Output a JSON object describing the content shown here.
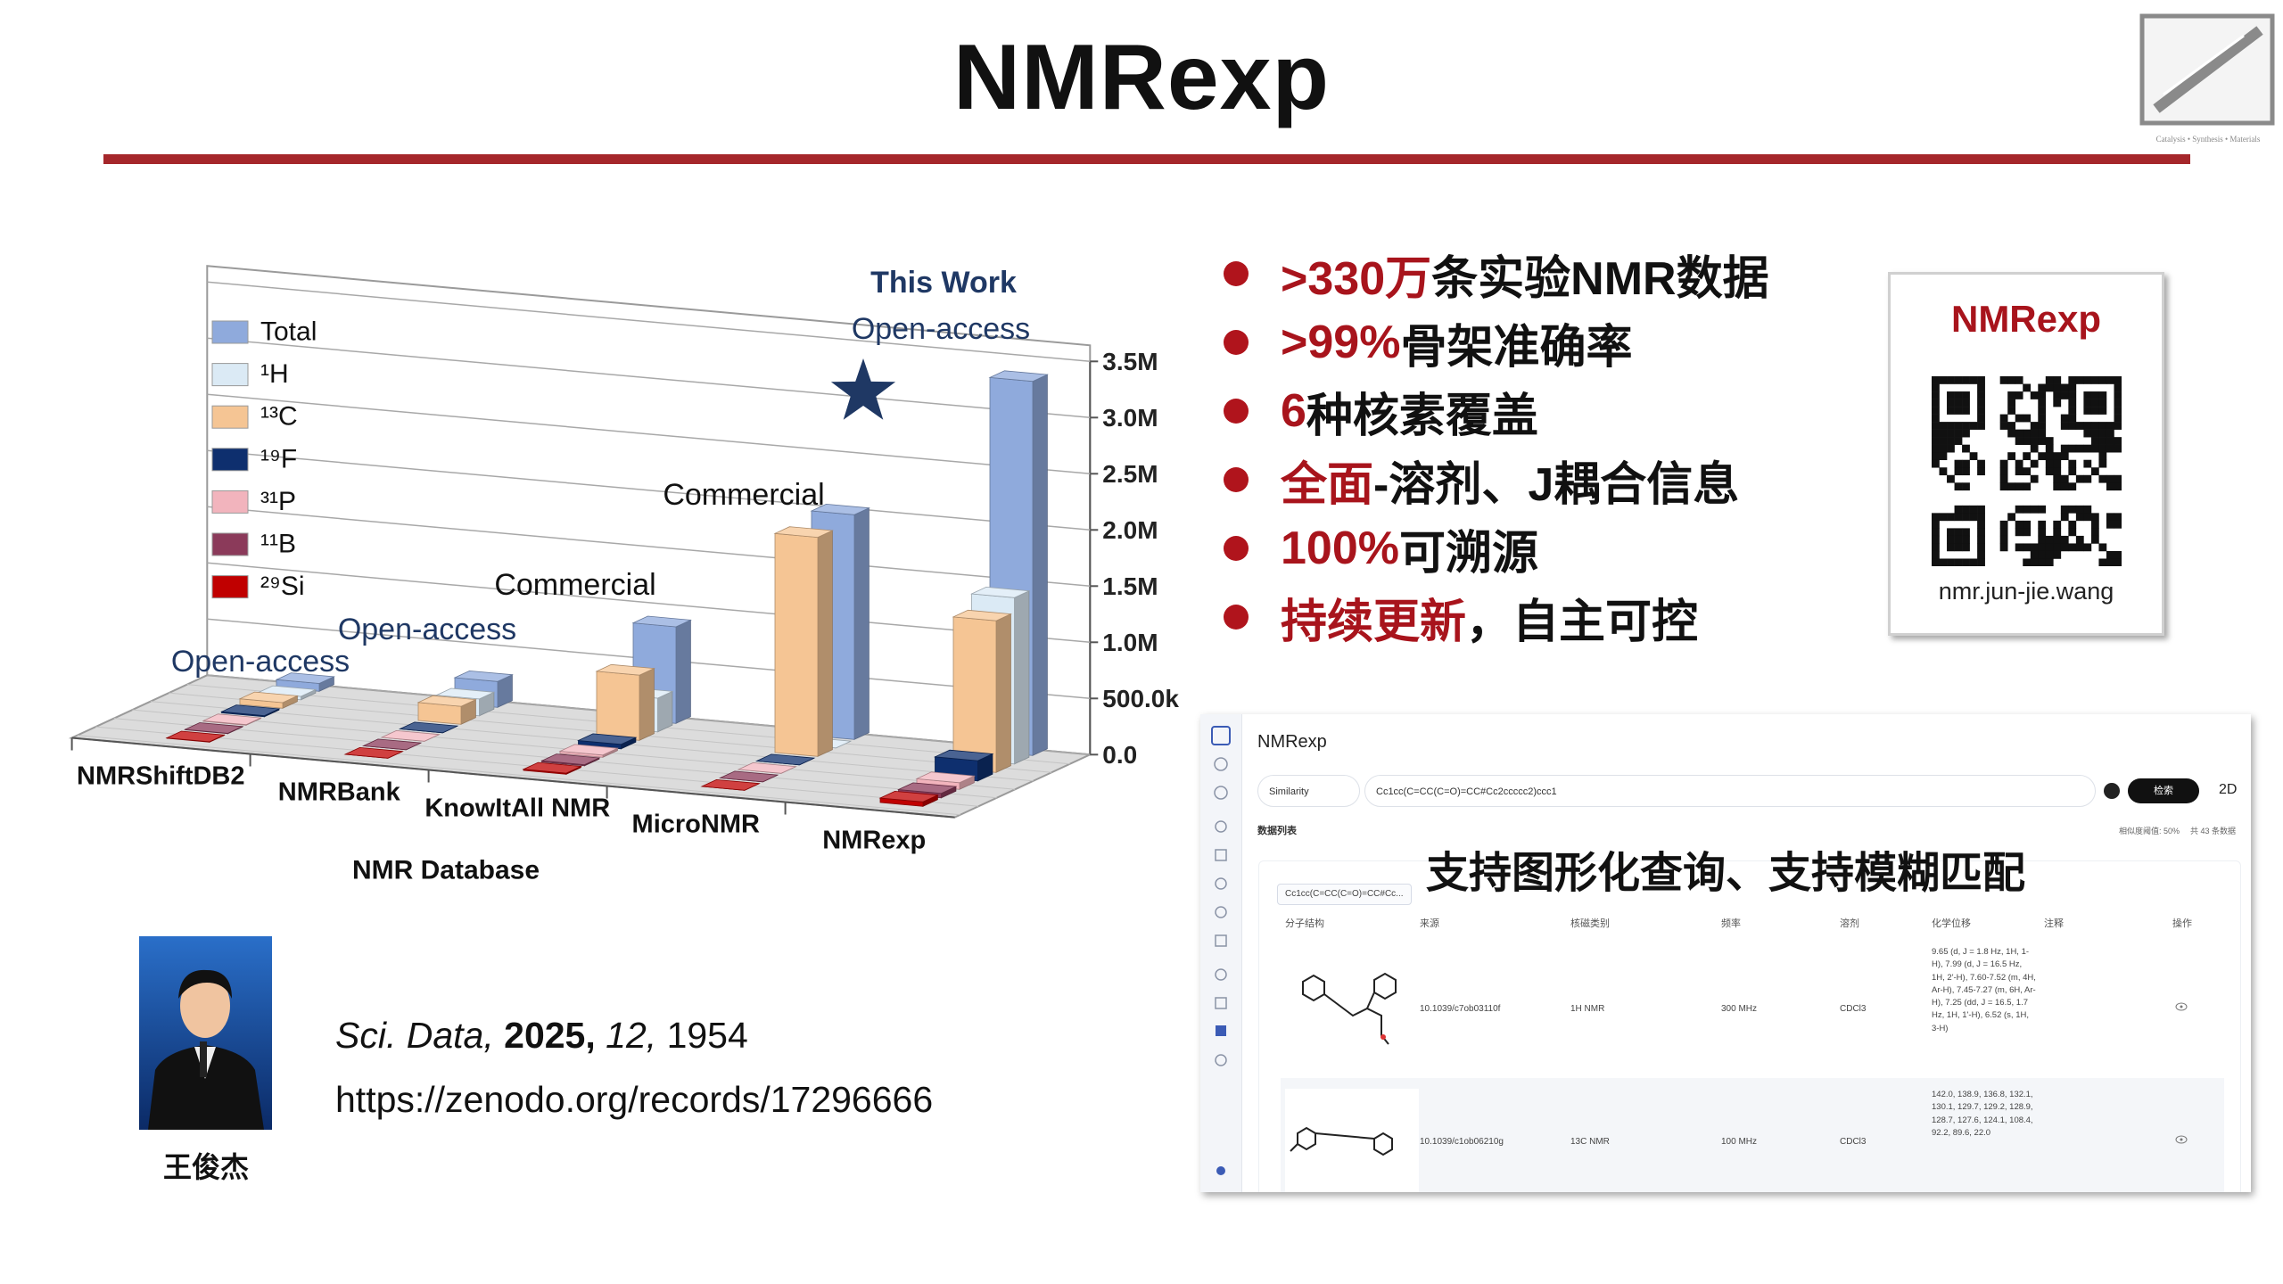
{
  "header": {
    "title": "NMRexp",
    "logo_caption": "Catalysis • Synthesis • Materials"
  },
  "chart_data": {
    "type": "bar3d",
    "xlabel": "NMR Database",
    "categories": [
      "NMRShiftDB2",
      "NMRBank",
      "KnowItAll NMR",
      "MicroNMR",
      "NMRexp"
    ],
    "series": [
      {
        "name": "Total",
        "color": "#8faadc",
        "values": [
          70000,
          230000,
          860000,
          2000000,
          3330000
        ]
      },
      {
        "name": "¹H",
        "color": "#dbeaf5",
        "values": [
          30000,
          150000,
          300000,
          0,
          1480000
        ]
      },
      {
        "name": "¹³C",
        "color": "#f5c594",
        "values": [
          50000,
          160000,
          580000,
          1950000,
          1350000
        ]
      },
      {
        "name": "¹⁹F",
        "color": "#0e2f6e",
        "values": [
          10000,
          0,
          40000,
          0,
          180000
        ]
      },
      {
        "name": "³¹P",
        "color": "#f2b4bd",
        "values": [
          5000,
          0,
          20000,
          0,
          60000
        ]
      },
      {
        "name": "¹¹B",
        "color": "#8b3a5a",
        "values": [
          3000,
          0,
          10000,
          0,
          40000
        ]
      },
      {
        "name": "²⁹Si",
        "color": "#c00000",
        "values": [
          3000,
          0,
          10000,
          0,
          40000
        ]
      }
    ],
    "ylim": [
      0,
      3500000
    ],
    "yticks": [
      {
        "value": 0,
        "label": "0.0"
      },
      {
        "value": 500000,
        "label": "500.0k"
      },
      {
        "value": 1000000,
        "label": "1.0M"
      },
      {
        "value": 1500000,
        "label": "1.5M"
      },
      {
        "value": 2000000,
        "label": "2.0M"
      },
      {
        "value": 2500000,
        "label": "2.5M"
      },
      {
        "value": 3000000,
        "label": "3.0M"
      },
      {
        "value": 3500000,
        "label": "3.5M"
      }
    ],
    "grid": true,
    "legend": "upper left",
    "annotations": [
      "Open-access",
      "Open-access",
      "Commercial",
      "Commercial",
      "Open-access"
    ],
    "annotation_colors": [
      "#1f3864",
      "#1f3864",
      "#111111",
      "#111111",
      "#1f3864"
    ],
    "highlight": "This Work",
    "highlight_color": "#1f3864"
  },
  "bullets": [
    {
      "highlight": ">330万",
      "text": "条实验NMR数据"
    },
    {
      "highlight": ">99%",
      "text": "骨架准确率"
    },
    {
      "highlight": "6",
      "text": "种核素覆盖"
    },
    {
      "highlight": "全面",
      "text": "-溶剂、J耦合信息"
    },
    {
      "highlight": "100%",
      "text": "可溯源"
    },
    {
      "highlight": "持续更新",
      "text": "，自主可控"
    }
  ],
  "qr_card": {
    "title": "NMRexp",
    "url": "nmr.jun-jie.wang"
  },
  "speaker": {
    "name": "王俊杰"
  },
  "citation": {
    "journal": "Sci. Data,",
    "year": "2025,",
    "volume": "12,",
    "pages": "1954",
    "link": "https://zenodo.org/records/17296666"
  },
  "app": {
    "title": "NMRexp",
    "search_mode": "Similarity",
    "query": "Cc1cc(C=CC(C=O)=CC#Cc2ccccc2)ccc1",
    "search_button": "检索",
    "mode_button": "2D",
    "list_title": "数据列表",
    "threshold": "相似度阈值: 50%",
    "count": "共 43 条数据",
    "caption": "支持图形化查询、支持模糊匹配",
    "chip": "Cc1cc(C=CC(C=O)=CC#Cc...",
    "columns": [
      "分子结构",
      "来源",
      "核磁类别",
      "频率",
      "溶剂",
      "化学位移",
      "注释",
      "操作"
    ],
    "rows": [
      [
        "10.1039/c7ob03110f",
        "1H NMR",
        "300 MHz",
        "CDCl3",
        "9.65 (d, J = 1.8 Hz, 1H, 1-H), 7.99 (d, J = 16.5 Hz, 1H, 2'-H), 7.60-7.52 (m, 4H, Ar-H), 7.45-7.27 (m, 6H, Ar-H), 7.25 (dd, J = 16.5, 1.7 Hz, 1H, 1'-H), 6.52 (s, 1H, 3-H)"
      ],
      [
        "10.1039/c1ob06210g",
        "13C NMR",
        "100 MHz",
        "CDCl3",
        "142.0, 138.9, 136.8, 132.1, 130.1, 129.7, 129.2, 128.9, 128.7, 127.6, 124.1, 108.4, 92.2, 89.6, 22.0"
      ]
    ]
  }
}
